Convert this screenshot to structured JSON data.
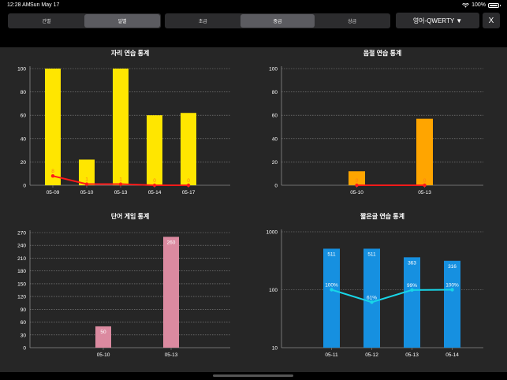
{
  "status": {
    "time": "12:28 AM",
    "date": "Sun May 17",
    "battery": "100%"
  },
  "toolbar": {
    "period_options": [
      {
        "label": "간별",
        "active": false
      },
      {
        "label": "일별",
        "active": true
      }
    ],
    "level_options": [
      {
        "label": "초급",
        "active": false
      },
      {
        "label": "중급",
        "active": true
      },
      {
        "label": "상급",
        "active": false
      }
    ],
    "keyboard_label": "영어-QWERTY ▼",
    "close_label": "X"
  },
  "chart_data": [
    {
      "type": "bar",
      "title": "자리 연습 통계",
      "categories": [
        "05-09",
        "05-10",
        "05-13",
        "05-14",
        "05-17"
      ],
      "yticks": [
        "0",
        "20",
        "40",
        "60",
        "80",
        "100"
      ],
      "ylim": [
        0,
        100
      ],
      "bar_color": "#ffe600",
      "values": [
        100,
        22,
        100,
        60,
        62
      ],
      "line_color": "#ff1a1a",
      "line_values": [
        8,
        1,
        1,
        0,
        0
      ],
      "line_labels": [
        "8",
        "1",
        "1",
        "0",
        "0"
      ],
      "line_label_color": "#ff7b1a"
    },
    {
      "type": "bar",
      "title": "음절 연습 통계",
      "categories": [
        "05-10",
        "05-13"
      ],
      "yticks": [
        "0",
        "20",
        "40",
        "60",
        "80",
        "100"
      ],
      "ylim": [
        0,
        100
      ],
      "bar_color": "#ffa500",
      "values": [
        12,
        57
      ],
      "line_color": "#ff1a1a",
      "line_values": [
        0,
        0
      ],
      "line_labels": [
        "0",
        "0"
      ],
      "line_label_color": "#ff7b1a"
    },
    {
      "type": "bar",
      "title": "단어 게임 통계",
      "categories": [
        "05-10",
        "05-13"
      ],
      "yticks": [
        "0",
        "30",
        "60",
        "90",
        "120",
        "150",
        "180",
        "210",
        "240",
        "270"
      ],
      "ylim": [
        0,
        270
      ],
      "bar_color": "#db8aa0",
      "values": [
        50,
        260
      ],
      "value_labels": [
        "50",
        "260"
      ]
    },
    {
      "type": "bar",
      "title": "짧은글 연습 통계",
      "categories": [
        "05-11",
        "05-12",
        "05-13",
        "05-14"
      ],
      "yticks": [
        "10",
        "100",
        "1000"
      ],
      "ylim": [
        10,
        1000
      ],
      "log_scale": true,
      "bar_color": "#1690e0",
      "values": [
        511,
        511,
        363,
        316
      ],
      "value_labels": [
        "511",
        "511",
        "363",
        "316"
      ],
      "line_color": "#18d6e8",
      "line_values": [
        100,
        61,
        99,
        100
      ],
      "line_labels": [
        "100%",
        "61%",
        "99%",
        "100%"
      ]
    }
  ]
}
